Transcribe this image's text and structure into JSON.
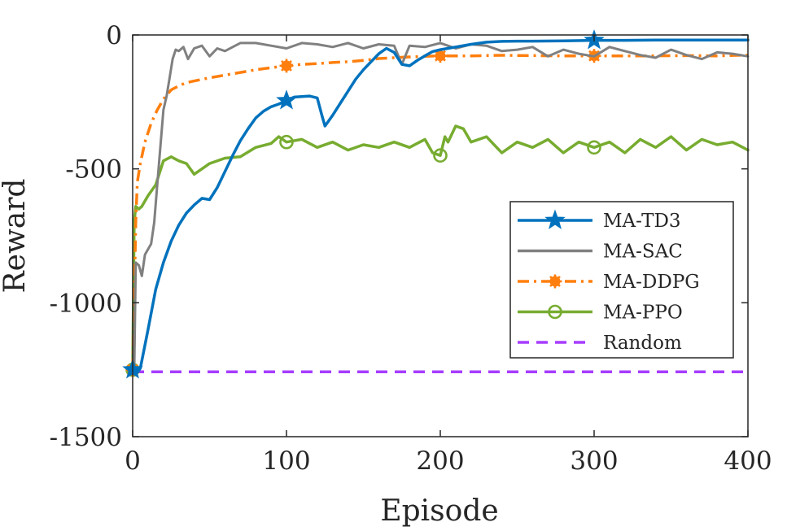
{
  "chart_data": {
    "type": "line",
    "title": "",
    "xlabel": "Episode",
    "ylabel": "Reward",
    "xlim": [
      0,
      400
    ],
    "ylim": [
      -1500,
      0
    ],
    "xticks": [
      0,
      100,
      200,
      300,
      400
    ],
    "yticks": [
      0,
      -500,
      -1000,
      -1500
    ],
    "xtick_labels": [
      "0",
      "100",
      "200",
      "300",
      "400"
    ],
    "ytick_labels": [
      "0",
      "-500",
      "-1000",
      "-1500"
    ],
    "grid": false,
    "legend_position": "right",
    "series": [
      {
        "name": "MA-TD3",
        "color": "#0072bd",
        "line_style": "solid",
        "marker": "star",
        "marker_x": [
          0,
          100,
          300
        ],
        "x": [
          0,
          1,
          3,
          5,
          10,
          15,
          20,
          25,
          30,
          35,
          40,
          45,
          50,
          55,
          60,
          65,
          70,
          75,
          80,
          85,
          90,
          95,
          100,
          105,
          110,
          115,
          120,
          123,
          125,
          130,
          135,
          140,
          145,
          150,
          155,
          160,
          165,
          170,
          175,
          180,
          185,
          190,
          195,
          200,
          210,
          220,
          230,
          240,
          250,
          260,
          280,
          300,
          320,
          340,
          360,
          380,
          400
        ],
        "y": [
          -1250,
          -1255,
          -1260,
          -1245,
          -1100,
          -950,
          -850,
          -770,
          -710,
          -665,
          -635,
          -610,
          -615,
          -570,
          -510,
          -450,
          -395,
          -350,
          -310,
          -285,
          -268,
          -258,
          -245,
          -232,
          -230,
          -228,
          -235,
          -300,
          -340,
          -300,
          -255,
          -210,
          -165,
          -130,
          -100,
          -70,
          -50,
          -65,
          -110,
          -115,
          -95,
          -78,
          -62,
          -55,
          -45,
          -35,
          -27,
          -24,
          -23,
          -23,
          -22,
          -20,
          -20,
          -19,
          -19,
          -19,
          -19
        ]
      },
      {
        "name": "MA-SAC",
        "color": "#808080",
        "line_style": "solid",
        "marker": "none",
        "marker_x": [],
        "x": [
          0,
          1,
          2,
          4,
          6,
          8,
          10,
          12,
          14,
          16,
          18,
          20,
          22,
          24,
          26,
          28,
          30,
          33,
          36,
          40,
          45,
          50,
          55,
          60,
          65,
          70,
          80,
          90,
          100,
          110,
          120,
          130,
          140,
          150,
          160,
          170,
          175,
          180,
          190,
          200,
          210,
          220,
          230,
          240,
          250,
          260,
          270,
          280,
          290,
          300,
          310,
          320,
          330,
          340,
          350,
          360,
          370,
          380,
          390,
          400
        ],
        "y": [
          -1250,
          -1260,
          -850,
          -860,
          -900,
          -820,
          -800,
          -780,
          -700,
          -560,
          -420,
          -280,
          -230,
          -160,
          -90,
          -55,
          -60,
          -45,
          -90,
          -50,
          -40,
          -80,
          -50,
          -60,
          -45,
          -30,
          -30,
          -40,
          -50,
          -30,
          -35,
          -45,
          -30,
          -50,
          -35,
          -40,
          -110,
          -40,
          -45,
          -30,
          -50,
          -35,
          -40,
          -60,
          -55,
          -45,
          -80,
          -55,
          -70,
          -80,
          -45,
          -60,
          -75,
          -85,
          -55,
          -75,
          -90,
          -65,
          -70,
          -80
        ]
      },
      {
        "name": "MA-DDPG",
        "color": "#ff7f0e",
        "line_style": "dashdot",
        "marker": "asterisk",
        "marker_x": [
          0,
          100,
          200,
          300
        ],
        "x": [
          0,
          1,
          2,
          3,
          5,
          8,
          12,
          16,
          20,
          25,
          30,
          35,
          40,
          50,
          60,
          70,
          80,
          90,
          100,
          110,
          120,
          130,
          140,
          150,
          160,
          170,
          180,
          190,
          200,
          220,
          240,
          260,
          280,
          300,
          320,
          340,
          360,
          380,
          400
        ],
        "y": [
          -1250,
          -1000,
          -700,
          -550,
          -480,
          -400,
          -330,
          -280,
          -240,
          -205,
          -190,
          -178,
          -172,
          -160,
          -150,
          -140,
          -130,
          -122,
          -115,
          -110,
          -107,
          -103,
          -100,
          -95,
          -88,
          -85,
          -82,
          -80,
          -78,
          -78,
          -76,
          -77,
          -78,
          -78,
          -78,
          -78,
          -77,
          -78,
          -75
        ]
      },
      {
        "name": "MA-PPO",
        "color": "#77ac30",
        "line_style": "solid",
        "marker": "circle",
        "marker_x": [
          0,
          100,
          200,
          300
        ],
        "x": [
          0,
          1,
          2,
          4,
          6,
          10,
          15,
          20,
          25,
          30,
          35,
          40,
          45,
          50,
          60,
          70,
          80,
          90,
          95,
          100,
          110,
          120,
          130,
          140,
          150,
          160,
          170,
          180,
          190,
          195,
          200,
          203,
          205,
          210,
          215,
          220,
          230,
          240,
          250,
          260,
          270,
          280,
          290,
          300,
          310,
          320,
          330,
          340,
          350,
          360,
          370,
          380,
          390,
          400
        ],
        "y": [
          -1250,
          -700,
          -640,
          -650,
          -640,
          -600,
          -560,
          -470,
          -455,
          -470,
          -480,
          -520,
          -500,
          -480,
          -460,
          -455,
          -420,
          -405,
          -380,
          -400,
          -390,
          -420,
          -400,
          -430,
          -410,
          -420,
          -400,
          -420,
          -390,
          -440,
          -450,
          -380,
          -400,
          -340,
          -350,
          -400,
          -380,
          -440,
          -400,
          -420,
          -390,
          -440,
          -400,
          -420,
          -400,
          -440,
          -390,
          -420,
          -380,
          -430,
          -390,
          -410,
          -400,
          -430
        ]
      },
      {
        "name": "Random",
        "color": "#a63dff",
        "line_style": "dashed",
        "marker": "none",
        "marker_x": [],
        "x": [
          0,
          400
        ],
        "y": [
          -1258,
          -1258
        ]
      }
    ]
  }
}
